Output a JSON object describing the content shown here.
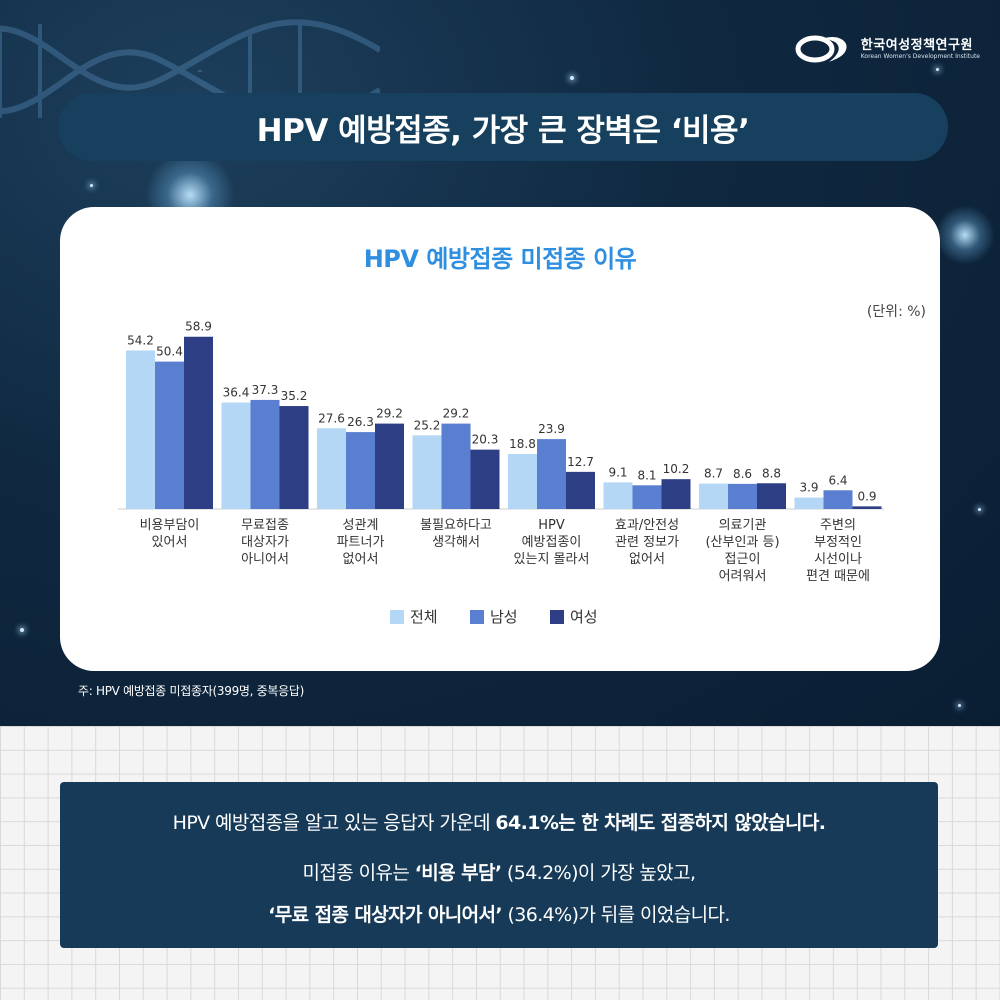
{
  "org": {
    "name_ko": "한국여성정책연구원",
    "name_en": "Korean Women's Development Institute"
  },
  "headline": "HPV 예방접종, 가장 큰 장벽은 ‘비용’",
  "unit_label": "(단위: %)",
  "footnote": "주: HPV 예방접종 미접종자(399명, 중복응답)",
  "colors": {
    "all": "#b3d7f5",
    "male": "#5b7fd0",
    "female": "#2e3e85",
    "title": "#2e8fe0"
  },
  "chart_data": {
    "type": "bar",
    "title": "HPV 예방접종 미접종 이유",
    "categories": [
      [
        "비용부담이",
        "있어서"
      ],
      [
        "무료접종",
        "대상자가",
        "아니어서"
      ],
      [
        "성관계",
        "파트너가",
        "없어서"
      ],
      [
        "불필요하다고",
        "생각해서"
      ],
      [
        "HPV",
        "예방접종이",
        "있는지 몰라서"
      ],
      [
        "효과/안전성",
        "관련 정보가",
        "없어서"
      ],
      [
        "의료기관",
        "(산부인과 등)",
        "접근이",
        "어려워서"
      ],
      [
        "주변의",
        "부정적인",
        "시선이나",
        "편견 때문에"
      ]
    ],
    "series": [
      {
        "name": "전체",
        "values": [
          54.2,
          36.4,
          27.6,
          25.2,
          18.8,
          9.1,
          8.7,
          3.9
        ]
      },
      {
        "name": "남성",
        "values": [
          50.4,
          37.3,
          26.3,
          29.2,
          23.9,
          8.1,
          8.6,
          6.4
        ]
      },
      {
        "name": "여성",
        "values": [
          58.9,
          35.2,
          29.2,
          20.3,
          12.7,
          10.2,
          8.8,
          0.9
        ]
      }
    ],
    "ylim": [
      0,
      60
    ],
    "legend_position": "bottom-center",
    "grid": false
  },
  "summary": {
    "line1_pre": "HPV 예방접종을 알고 있는 응답자 가운데 ",
    "line1_bold": "64.1%는 한 차례도 접종하지 않았습니다.",
    "line2_pre": "미접종 이유는 ",
    "line2_bold": "‘비용 부담’",
    "line2_post": " (54.2%)이 가장 높았고,",
    "line3_bold": "‘무료 접종 대상자가 아니어서’",
    "line3_post": " (36.4%)가 뒤를 이었습니다."
  }
}
